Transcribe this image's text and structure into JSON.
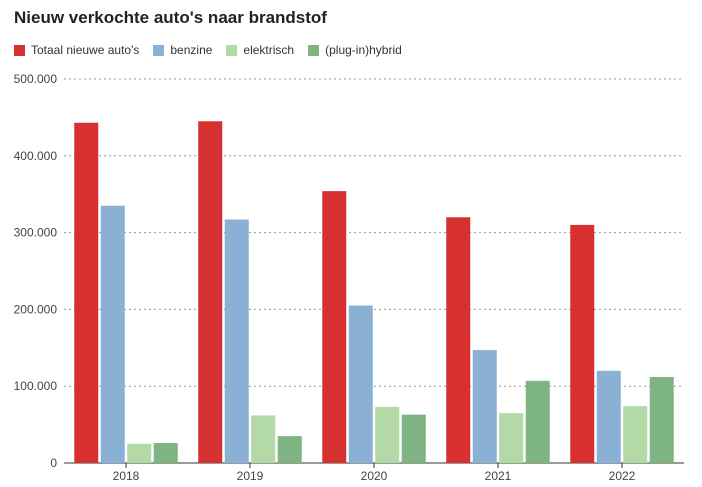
{
  "chart_data": {
    "type": "bar",
    "title": "Nieuw verkochte auto's naar brandstof",
    "categories": [
      "2018",
      "2019",
      "2020",
      "2021",
      "2022"
    ],
    "series": [
      {
        "name": "Totaal nieuwe auto's",
        "color": "#d63031",
        "values": [
          443000,
          445000,
          354000,
          320000,
          310000
        ]
      },
      {
        "name": "benzine",
        "color": "#8ab0d4",
        "values": [
          335000,
          317000,
          205000,
          147000,
          120000
        ]
      },
      {
        "name": "elektrisch",
        "color": "#b3d9a6",
        "values": [
          25000,
          62000,
          73000,
          65000,
          74000
        ]
      },
      {
        "name": "(plug-in)hybrid",
        "color": "#7fb583",
        "values": [
          26000,
          35000,
          63000,
          107000,
          112000
        ]
      }
    ],
    "ylim": [
      0,
      500000
    ],
    "yticks": [
      0,
      100000,
      200000,
      300000,
      400000,
      500000
    ],
    "ytick_labels": [
      "0",
      "100.000",
      "200.000",
      "300.000",
      "400.000",
      "500.000"
    ],
    "grid": true,
    "legend_position": "top-left"
  }
}
